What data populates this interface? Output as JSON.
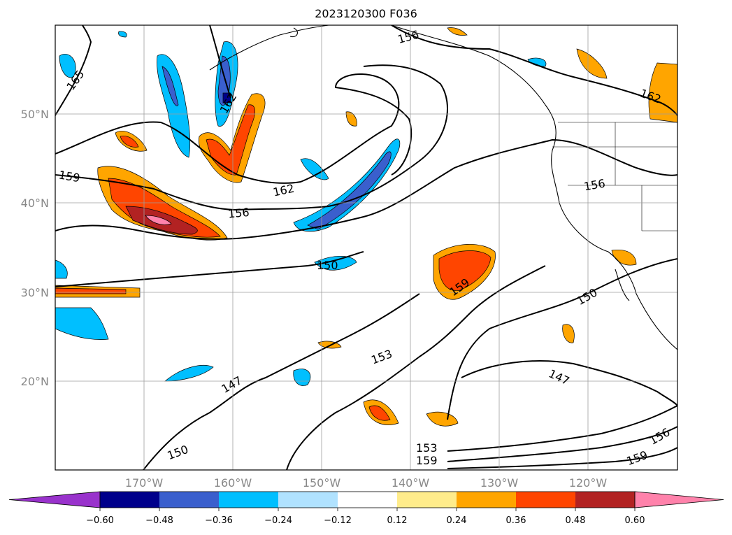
{
  "title": "2023120300 F036",
  "map": {
    "projection": "PlateCarree",
    "lon_range": [
      -180,
      -110
    ],
    "lat_range": [
      10,
      60
    ],
    "lat_labels": [
      "20°N",
      "30°N",
      "40°N",
      "50°N"
    ],
    "lon_labels": [
      "170°W",
      "160°W",
      "150°W",
      "140°W",
      "130°W",
      "120°W"
    ],
    "contour_labels": [
      "165",
      "162",
      "156",
      "159",
      "162",
      "156",
      "150",
      "159",
      "153",
      "147",
      "150",
      "153",
      "159",
      "156",
      "147",
      "150",
      "159",
      "156",
      "162"
    ]
  },
  "colorbar": {
    "ticks": [
      "−0.60",
      "−0.48",
      "−0.36",
      "−0.24",
      "−0.12",
      "0.12",
      "0.24",
      "0.36",
      "0.48",
      "0.60"
    ],
    "colors": [
      "#9932cc",
      "#00008b",
      "#3a5fcd",
      "#00bfff",
      "#b0e2ff",
      "#ffffff",
      "#ffec8b",
      "#ffa500",
      "#ff4500",
      "#b22222",
      "#ff82ab"
    ]
  }
}
